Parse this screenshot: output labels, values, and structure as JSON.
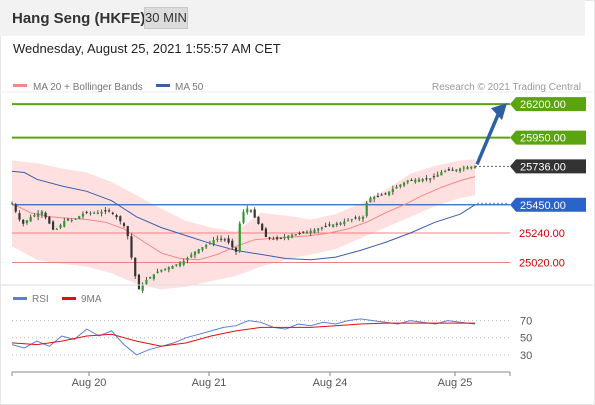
{
  "header": {
    "title": "Hang Seng (HKFE)",
    "timeframe": "30 MIN"
  },
  "timestamp": "Wednesday, August 25, 2021 1:55:57 AM CET",
  "colors": {
    "resistance": "#5aa50f",
    "support": "#2a64c8",
    "level_red": "#f08080",
    "price_tag": "#333333",
    "arrow": "#2e5fa3",
    "bollinger": "#ffd6d6",
    "ma20": "#f08888",
    "ma50": "#3b5ea8",
    "rsi": "#5b7fd6",
    "rsi_ma": "#e01010"
  },
  "chart_data": {
    "type": "candlestick",
    "legend": [
      "MA 20 + Bollinger Bands",
      "MA 50"
    ],
    "credit": "Research © 2021 Trading Central",
    "x_labels": [
      "Aug 20",
      "Aug 21",
      "Aug 24",
      "Aug 25"
    ],
    "ylim": [
      24830,
      26290
    ],
    "last_price": "25736.00",
    "levels": [
      {
        "value": 26200,
        "label": "26200.00",
        "type": "resistance"
      },
      {
        "value": 25950,
        "label": "25950.00",
        "type": "resistance"
      },
      {
        "value": 25450,
        "label": "25450.00",
        "type": "support"
      },
      {
        "value": 25240,
        "label": "25240.00",
        "type": "minor"
      },
      {
        "value": 25020,
        "label": "25020.00",
        "type": "minor"
      }
    ],
    "price_path": [
      [
        0,
        25460
      ],
      [
        8,
        25300
      ],
      [
        15,
        25360
      ],
      [
        24,
        25400
      ],
      [
        34,
        25250
      ],
      [
        42,
        25330
      ],
      [
        50,
        25340
      ],
      [
        58,
        25390
      ],
      [
        68,
        25390
      ],
      [
        78,
        25405
      ],
      [
        85,
        25350
      ],
      [
        92,
        25270
      ],
      [
        98,
        24950
      ],
      [
        102,
        24820
      ],
      [
        108,
        24890
      ],
      [
        118,
        24960
      ],
      [
        128,
        24990
      ],
      [
        138,
        25030
      ],
      [
        148,
        25110
      ],
      [
        156,
        25150
      ],
      [
        164,
        25200
      ],
      [
        172,
        25190
      ],
      [
        180,
        25100
      ],
      [
        184,
        25380
      ],
      [
        190,
        25430
      ],
      [
        196,
        25340
      ],
      [
        204,
        25210
      ],
      [
        212,
        25190
      ],
      [
        222,
        25220
      ],
      [
        232,
        25240
      ],
      [
        242,
        25260
      ],
      [
        252,
        25290
      ],
      [
        262,
        25310
      ],
      [
        272,
        25340
      ],
      [
        282,
        25360
      ],
      [
        286,
        25500
      ],
      [
        292,
        25510
      ],
      [
        300,
        25530
      ],
      [
        308,
        25580
      ],
      [
        318,
        25630
      ],
      [
        328,
        25640
      ],
      [
        338,
        25650
      ],
      [
        346,
        25700
      ],
      [
        356,
        25710
      ],
      [
        364,
        25730
      ],
      [
        372,
        25736
      ]
    ],
    "ma20_path": [
      [
        0,
        25460
      ],
      [
        15,
        25390
      ],
      [
        30,
        25360
      ],
      [
        45,
        25350
      ],
      [
        60,
        25340
      ],
      [
        75,
        25320
      ],
      [
        90,
        25270
      ],
      [
        105,
        25180
      ],
      [
        120,
        25090
      ],
      [
        135,
        25050
      ],
      [
        150,
        25040
      ],
      [
        165,
        25080
      ],
      [
        180,
        25140
      ],
      [
        195,
        25190
      ],
      [
        210,
        25200
      ],
      [
        225,
        25210
      ],
      [
        240,
        25220
      ],
      [
        255,
        25240
      ],
      [
        270,
        25270
      ],
      [
        285,
        25320
      ],
      [
        300,
        25390
      ],
      [
        315,
        25450
      ],
      [
        330,
        25520
      ],
      [
        345,
        25580
      ],
      [
        360,
        25630
      ],
      [
        372,
        25660
      ]
    ],
    "ma50_path": [
      [
        0,
        25700
      ],
      [
        10,
        25690
      ],
      [
        20,
        25640
      ],
      [
        40,
        25590
      ],
      [
        60,
        25550
      ],
      [
        80,
        25480
      ],
      [
        100,
        25360
      ],
      [
        120,
        25280
      ],
      [
        140,
        25220
      ],
      [
        160,
        25160
      ],
      [
        180,
        25110
      ],
      [
        200,
        25080
      ],
      [
        220,
        25050
      ],
      [
        240,
        25040
      ],
      [
        260,
        25060
      ],
      [
        280,
        25110
      ],
      [
        300,
        25170
      ],
      [
        320,
        25240
      ],
      [
        340,
        25320
      ],
      [
        360,
        25380
      ],
      [
        372,
        25450
      ]
    ],
    "bb_upper_path": [
      [
        0,
        25780
      ],
      [
        20,
        25760
      ],
      [
        40,
        25720
      ],
      [
        60,
        25690
      ],
      [
        80,
        25620
      ],
      [
        100,
        25520
      ],
      [
        120,
        25420
      ],
      [
        140,
        25330
      ],
      [
        160,
        25280
      ],
      [
        180,
        25250
      ],
      [
        200,
        25390
      ],
      [
        220,
        25370
      ],
      [
        240,
        25340
      ],
      [
        260,
        25380
      ],
      [
        280,
        25460
      ],
      [
        300,
        25560
      ],
      [
        320,
        25680
      ],
      [
        340,
        25740
      ],
      [
        360,
        25780
      ],
      [
        372,
        25790
      ]
    ],
    "bb_lower_path": [
      [
        0,
        25140
      ],
      [
        20,
        25040
      ],
      [
        40,
        25010
      ],
      [
        60,
        24990
      ],
      [
        80,
        24940
      ],
      [
        100,
        24860
      ],
      [
        120,
        24820
      ],
      [
        140,
        24840
      ],
      [
        160,
        24880
      ],
      [
        180,
        24920
      ],
      [
        200,
        24990
      ],
      [
        220,
        25040
      ],
      [
        240,
        25080
      ],
      [
        260,
        25120
      ],
      [
        280,
        25200
      ],
      [
        300,
        25280
      ],
      [
        320,
        25360
      ],
      [
        340,
        25440
      ],
      [
        360,
        25500
      ],
      [
        372,
        25520
      ]
    ],
    "rsi": {
      "legend": [
        "RSI",
        "9MA"
      ],
      "ticks": [
        70,
        50,
        30
      ],
      "ylim": [
        10,
        80
      ],
      "rsi_path": [
        [
          0,
          42
        ],
        [
          10,
          38
        ],
        [
          20,
          46
        ],
        [
          30,
          40
        ],
        [
          40,
          52
        ],
        [
          50,
          48
        ],
        [
          60,
          60
        ],
        [
          70,
          52
        ],
        [
          80,
          58
        ],
        [
          90,
          42
        ],
        [
          100,
          30
        ],
        [
          110,
          36
        ],
        [
          120,
          40
        ],
        [
          130,
          44
        ],
        [
          140,
          50
        ],
        [
          150,
          54
        ],
        [
          160,
          58
        ],
        [
          170,
          62
        ],
        [
          180,
          64
        ],
        [
          190,
          70
        ],
        [
          200,
          68
        ],
        [
          210,
          62
        ],
        [
          220,
          60
        ],
        [
          230,
          66
        ],
        [
          240,
          64
        ],
        [
          250,
          68
        ],
        [
          260,
          66
        ],
        [
          270,
          70
        ],
        [
          280,
          72
        ],
        [
          290,
          70
        ],
        [
          300,
          68
        ],
        [
          310,
          66
        ],
        [
          320,
          70
        ],
        [
          330,
          68
        ],
        [
          340,
          66
        ],
        [
          350,
          70
        ],
        [
          360,
          68
        ],
        [
          372,
          66
        ]
      ],
      "ma_path": [
        [
          0,
          44
        ],
        [
          20,
          42
        ],
        [
          40,
          46
        ],
        [
          60,
          52
        ],
        [
          80,
          54
        ],
        [
          100,
          46
        ],
        [
          120,
          40
        ],
        [
          140,
          44
        ],
        [
          160,
          52
        ],
        [
          180,
          58
        ],
        [
          200,
          62
        ],
        [
          220,
          62
        ],
        [
          240,
          62
        ],
        [
          260,
          64
        ],
        [
          280,
          66
        ],
        [
          300,
          67
        ],
        [
          320,
          67
        ],
        [
          340,
          67
        ],
        [
          360,
          67
        ],
        [
          372,
          67
        ]
      ]
    }
  }
}
